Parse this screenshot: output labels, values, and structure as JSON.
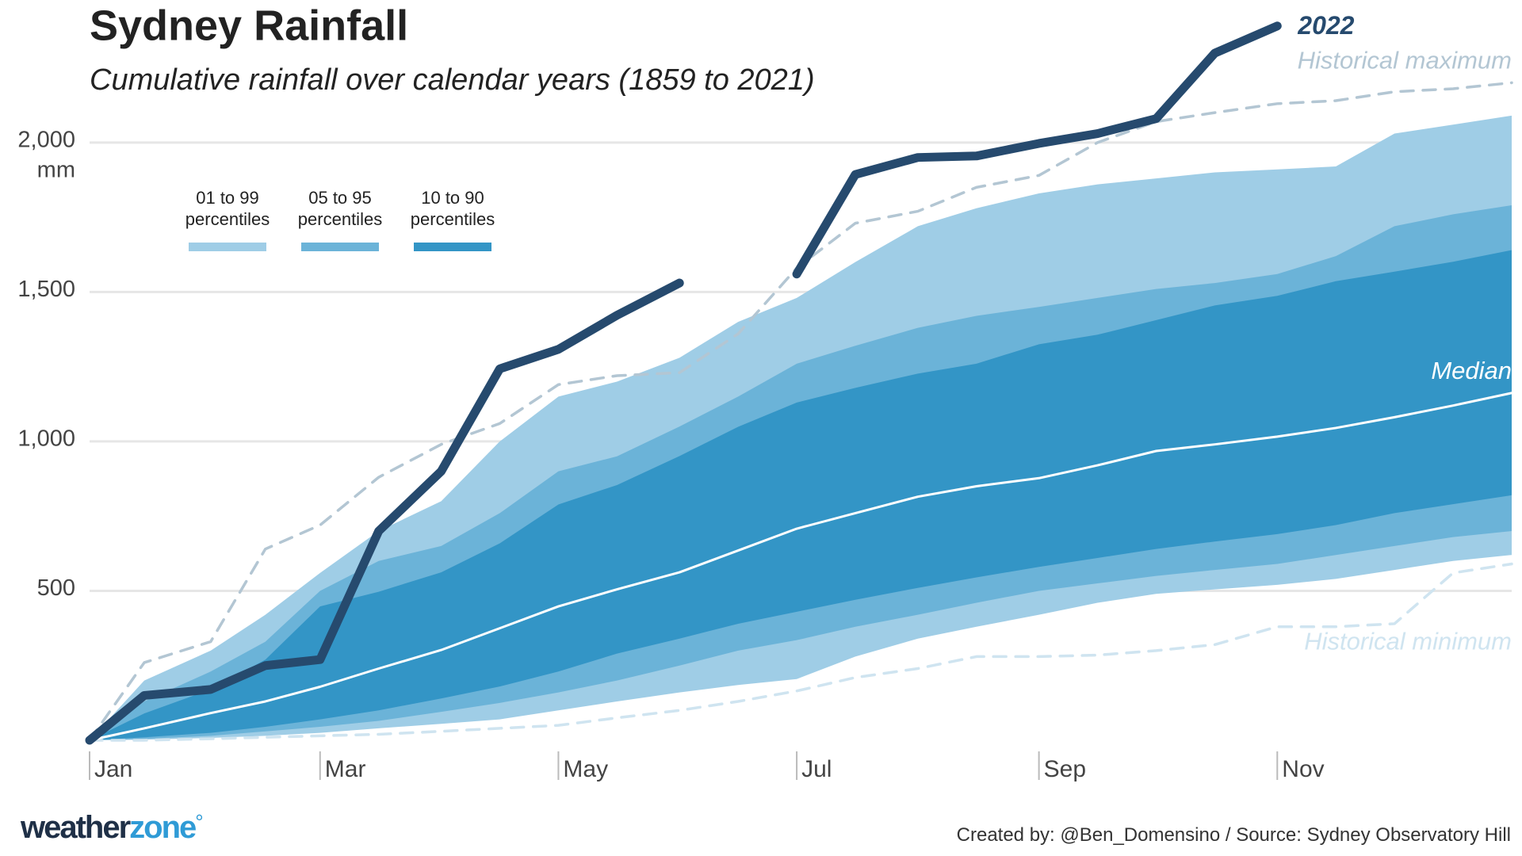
{
  "chart_data": {
    "type": "area",
    "title": "Sydney Rainfall",
    "subtitle": "Cumulative rainfall over calendar years (1859 to 2021)",
    "y_unit": "mm",
    "x": [
      1,
      15,
      32,
      46,
      60,
      75,
      91,
      106,
      121,
      136,
      152,
      167,
      182,
      197,
      213,
      228,
      244,
      259,
      274,
      289,
      305,
      320,
      335,
      350,
      365
    ],
    "xlim": [
      1,
      365
    ],
    "xticks": [
      {
        "value": 1,
        "label": "Jan"
      },
      {
        "value": 60,
        "label": "Mar"
      },
      {
        "value": 121,
        "label": "May"
      },
      {
        "value": 182,
        "label": "Jul"
      },
      {
        "value": 244,
        "label": "Sep"
      },
      {
        "value": 305,
        "label": "Nov"
      }
    ],
    "ylim": [
      0,
      2400
    ],
    "yticks": [
      500,
      {
        "value": 1000,
        "label": "1,000"
      },
      {
        "value": 1500,
        "label": "1,500"
      },
      {
        "value": 2000,
        "label": "2,000"
      }
    ],
    "grid": true,
    "bands": [
      {
        "name": "01 to 99 percentiles",
        "color": "#9fcde6",
        "lower": [
          0,
          2,
          8,
          15,
          25,
          40,
          55,
          70,
          100,
          130,
          160,
          185,
          205,
          280,
          340,
          380,
          420,
          460,
          490,
          505,
          520,
          540,
          570,
          600,
          620
        ],
        "upper": [
          0,
          200,
          300,
          420,
          560,
          700,
          800,
          1000,
          1150,
          1200,
          1280,
          1400,
          1480,
          1600,
          1720,
          1780,
          1830,
          1860,
          1880,
          1900,
          1910,
          1920,
          2030,
          2060,
          2090
        ]
      },
      {
        "name": "05 to 95 percentiles",
        "color": "#6bb3d8",
        "lower": [
          0,
          5,
          15,
          30,
          45,
          65,
          95,
          125,
          160,
          200,
          250,
          300,
          335,
          380,
          420,
          460,
          500,
          525,
          550,
          570,
          590,
          620,
          650,
          680,
          700
        ],
        "upper": [
          0,
          130,
          230,
          330,
          500,
          600,
          650,
          760,
          900,
          950,
          1050,
          1150,
          1260,
          1320,
          1380,
          1420,
          1450,
          1480,
          1510,
          1530,
          1560,
          1620,
          1720,
          1760,
          1790
        ]
      },
      {
        "name": "10 to 90 percentiles",
        "color": "#3395c6",
        "lower": [
          0,
          10,
          25,
          45,
          70,
          100,
          140,
          180,
          230,
          290,
          340,
          390,
          430,
          470,
          510,
          545,
          580,
          610,
          640,
          665,
          690,
          720,
          760,
          790,
          820
        ],
        "upper": [
          0,
          90,
          170,
          270,
          448,
          497,
          562,
          659,
          789,
          854,
          951,
          1049,
          1130,
          1179,
          1227,
          1260,
          1325,
          1357,
          1406,
          1455,
          1487,
          1536,
          1568,
          1601,
          1640
        ]
      }
    ],
    "lines": [
      {
        "name": "Historical maximum",
        "color": "#b3c6d3",
        "dashed": true,
        "values": [
          0,
          260,
          330,
          640,
          720,
          880,
          990,
          1060,
          1190,
          1220,
          1230,
          1360,
          1580,
          1730,
          1770,
          1850,
          1890,
          2000,
          2070,
          2100,
          2130,
          2140,
          2170,
          2180,
          2200
        ]
      },
      {
        "name": "Historical minimum",
        "color": "#cfe4f0",
        "dashed": true,
        "values": [
          0,
          0,
          5,
          10,
          15,
          20,
          30,
          40,
          50,
          75,
          100,
          130,
          165,
          210,
          240,
          280,
          280,
          285,
          300,
          320,
          380,
          380,
          390,
          560,
          590
        ]
      },
      {
        "name": "Median",
        "color": "#ffffff",
        "dashed": false,
        "values": [
          0,
          40,
          91,
          130,
          179,
          240,
          302,
          375,
          448,
          505,
          562,
          635,
          708,
          760,
          815,
          850,
          877,
          920,
          968,
          990,
          1016,
          1045,
          1081,
          1120,
          1162
        ]
      },
      {
        "name": "2022",
        "color": "#264a6e",
        "dashed": false,
        "values": [
          0,
          150,
          170,
          250,
          270,
          700,
          900,
          1243,
          1308,
          1422,
          1530,
          null,
          1560,
          1893,
          1950,
          1955,
          1997,
          2030,
          2080,
          2299,
          2390,
          null,
          null,
          null,
          null
        ]
      }
    ]
  },
  "footer": {
    "logo": [
      "weather",
      "zone",
      "°"
    ],
    "credit": "Created by: @Ben_Domensino / Source: Sydney Observatory Hill"
  }
}
